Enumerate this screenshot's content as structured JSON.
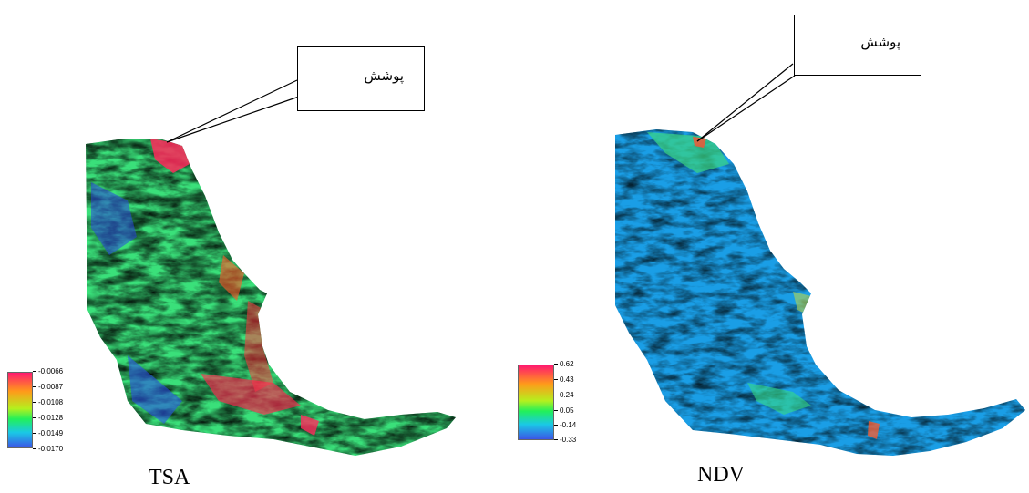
{
  "panels": [
    {
      "label": "TSA",
      "callout": "پوشش",
      "legend": {
        "ticks": [
          "-0.0066",
          "-0.0087",
          "-0.0108",
          "-0.0128",
          "-0.0149",
          "-0.0170"
        ],
        "colors": [
          "#ff1a6e",
          "#ff9a1a",
          "#b4f01e",
          "#22f05a",
          "#1ac8e6",
          "#3c55e6"
        ]
      }
    },
    {
      "label": "NDV",
      "callout": "پوشش",
      "legend": {
        "ticks": [
          "0.62",
          "0.43",
          "0.24",
          "0.05",
          "-0.14",
          "-0.33"
        ],
        "colors": [
          "#ff1a6e",
          "#ff9a1a",
          "#b4f01e",
          "#22f05a",
          "#1ac8e6",
          "#3c55e6"
        ]
      }
    }
  ]
}
